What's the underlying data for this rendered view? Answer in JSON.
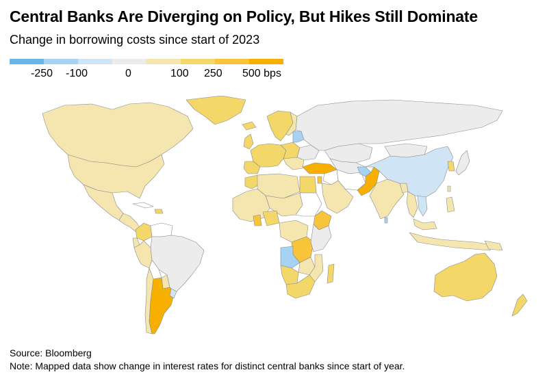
{
  "title": "Central Banks Are Diverging on Policy, But Hikes Still Dominate",
  "subtitle": "Change in borrowing costs since start of 2023",
  "legend": {
    "colors": [
      "#6bb4e8",
      "#a6d3f3",
      "#cfe4f4",
      "#ececec",
      "#f5e6b0",
      "#f4d769",
      "#f7c43a",
      "#f7b000"
    ],
    "ticks": [
      "-250",
      "-100",
      "0",
      "100",
      "250",
      "500 bps"
    ]
  },
  "map": {
    "colors": {
      "no_data": "#ffffff",
      "grey": "#ececec",
      "light_blue": "#cfe4f4",
      "mid_blue": "#a6d3f3",
      "pale_yellow": "#f5e6b0",
      "yellow": "#f4d769",
      "orange": "#f7c43a",
      "deep_orange": "#f7b000"
    }
  },
  "footer": {
    "source": "Source: Bloomberg",
    "note": "Note: Mapped data show change in interest rates for distinct central banks since start of year."
  }
}
